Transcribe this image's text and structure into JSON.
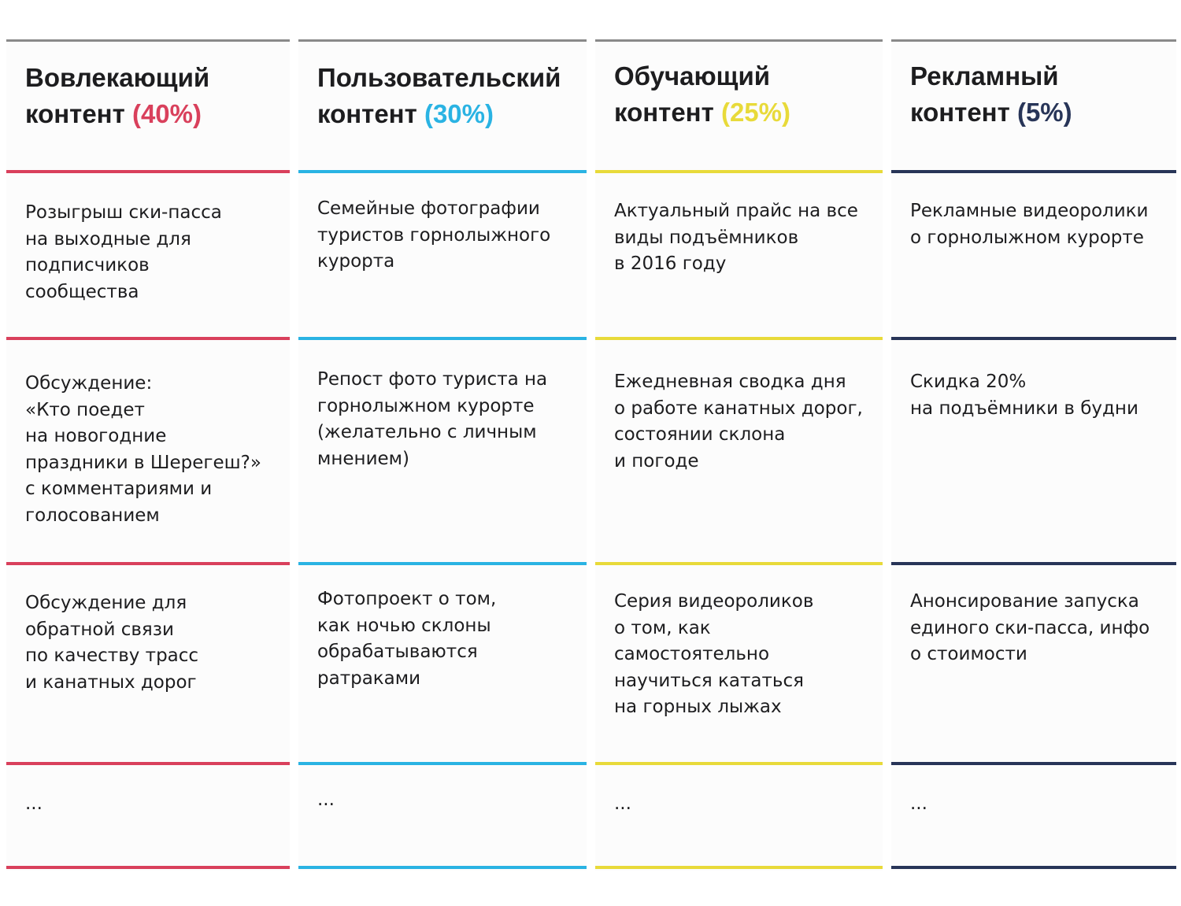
{
  "columns": [
    {
      "title": "Вовлекающий\nконтент",
      "percent": "(40%)",
      "color": "#d9405c",
      "cells": [
        "Розыгрыш ски-пасса\nна выходные для\nподписчиков\nсообщества",
        "Обсуждение:\n«Кто поедет\nна новогодние\nпраздники в Шерегеш?»\nс комментариями и\nголосованием",
        "Обсуждение для\nобратной связи\nпо качеству трасс\nи канатных дорог",
        "..."
      ]
    },
    {
      "title": "Пользовательский\nконтент",
      "percent": "(30%)",
      "color": "#2ab3e3",
      "cells": [
        "Семейные фотографии\nтуристов горнолыжного\nкурорта",
        "Репост фото туриста на\nгорнолыжном курорте\n(желательно с личным\nмнением)",
        "Фотопроект о том,\nкак ночью склоны\nобрабатываются\nратраками",
        "..."
      ]
    },
    {
      "title": "Обучающий\nконтент",
      "percent": "(25%)",
      "color": "#e8da3a",
      "cells": [
        "Актуальный прайс на все\nвиды подъёмников\n в 2016 году",
        "Ежедневная сводка дня\nо работе канатных дорог,\nсостоянии склона\nи погоде",
        "Серия видеороликов\n о том, как\nсамостоятельно\nнаучиться кататься\nна горных лыжах",
        "..."
      ]
    },
    {
      "title": "Рекламный\nконтент",
      "percent": "(5%)",
      "color": "#283558",
      "cells": [
        "Рекламные видеоролики\nо горнолыжном курорте",
        "Скидка 20%\nна подъёмники в будни",
        "Анонсирование запуска\nединого ски-пасса, инфо\nо стоимости",
        "..."
      ]
    }
  ]
}
